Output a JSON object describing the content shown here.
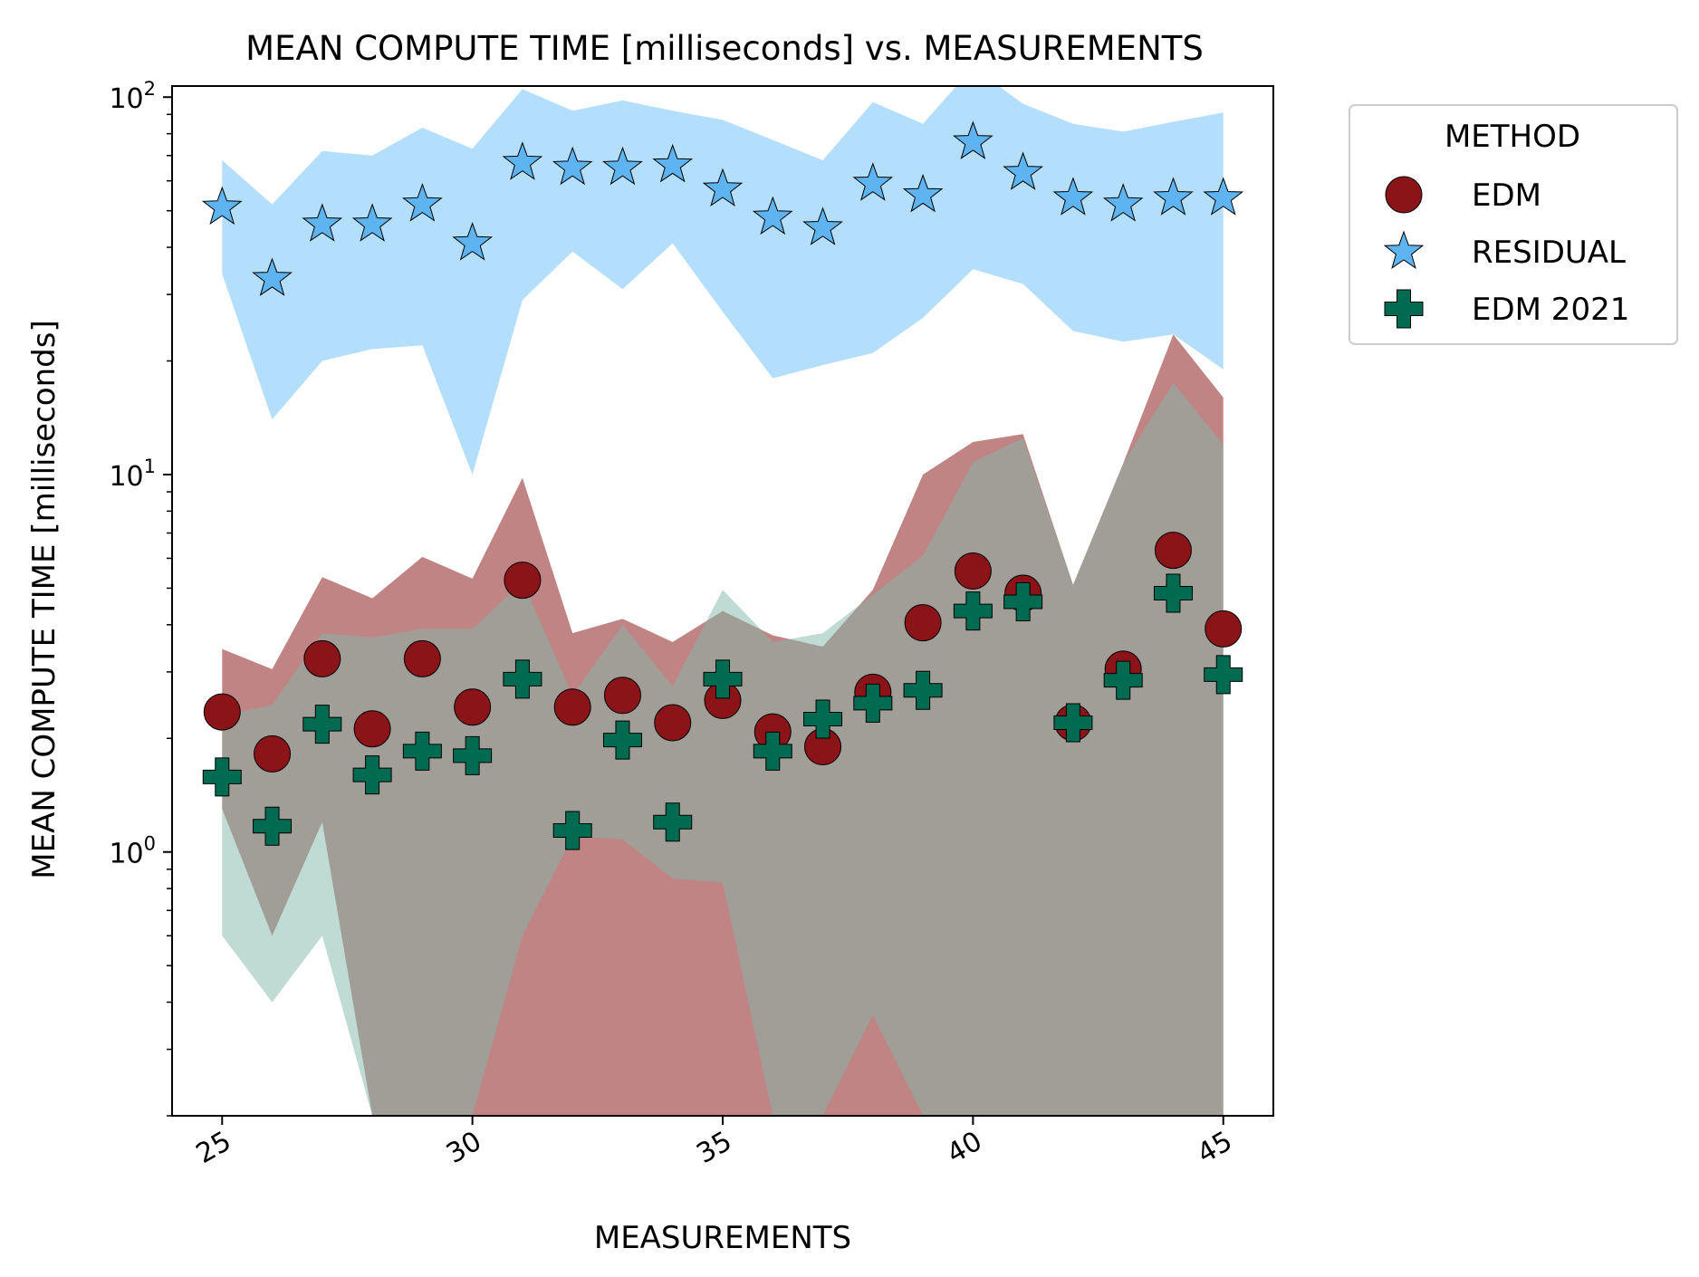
{
  "chart_data": {
    "type": "scatter",
    "title": "MEAN COMPUTE TIME [milliseconds] vs. MEASUREMENTS",
    "xlabel": "MEASUREMENTS",
    "ylabel": "MEAN COMPUTE TIME [milliseconds]",
    "y_scale": "log",
    "xlim": [
      24,
      46
    ],
    "ylim": [
      0.2,
      107
    ],
    "x_ticks": [
      25,
      30,
      35,
      40,
      45
    ],
    "x_tick_labels": [
      "25",
      "30",
      "35",
      "40",
      "45"
    ],
    "y_ticks": [
      1,
      10,
      100
    ],
    "y_tick_labels": [
      {
        "base": "10",
        "exp": "0"
      },
      {
        "base": "10",
        "exp": "1"
      },
      {
        "base": "10",
        "exp": "2"
      }
    ],
    "legend": {
      "title": "METHOD",
      "position": "outside-top-right"
    },
    "x": [
      25,
      26,
      27,
      28,
      29,
      30,
      31,
      32,
      33,
      34,
      35,
      36,
      37,
      38,
      39,
      40,
      41,
      42,
      43,
      44,
      45
    ],
    "series": [
      {
        "name": "EDM",
        "marker": "circle",
        "color": "#8b1418",
        "band_color": "#c08484",
        "values": [
          2.35,
          1.82,
          3.25,
          2.12,
          3.25,
          2.42,
          5.25,
          2.42,
          2.6,
          2.2,
          2.52,
          2.08,
          1.9,
          2.65,
          4.05,
          5.55,
          4.85,
          2.2,
          3.05,
          6.3,
          3.9
        ],
        "band_upper": [
          3.45,
          3.05,
          5.35,
          4.7,
          6.05,
          5.3,
          9.8,
          3.8,
          4.15,
          3.6,
          4.35,
          3.75,
          3.5,
          4.95,
          10.0,
          12.2,
          12.8,
          5.1,
          10.7,
          23.5,
          16.0
        ],
        "band_lower": [
          1.3,
          0.6,
          1.2,
          0.2,
          0.2,
          0.2,
          0.2,
          0.2,
          0.2,
          0.2,
          0.2,
          0.2,
          0.2,
          0.2,
          0.2,
          0.2,
          0.2,
          0.2,
          0.2,
          0.2,
          0.2
        ]
      },
      {
        "name": "RESIDUAL",
        "marker": "star",
        "color": "#5eb4f0",
        "band_color": "#b3defc",
        "values": [
          51,
          33,
          46,
          46,
          52,
          41,
          67,
          65,
          65,
          66,
          57,
          48,
          45,
          59,
          55,
          76,
          63,
          54,
          52,
          54,
          54
        ],
        "band_upper": [
          68,
          52,
          72,
          70,
          83,
          73,
          105,
          92,
          98,
          92,
          87,
          77,
          68,
          97,
          85,
          120,
          96,
          85,
          81,
          86,
          91
        ],
        "band_lower": [
          34,
          14,
          20,
          21.5,
          22,
          10,
          29,
          39,
          31,
          41,
          27,
          18,
          19.5,
          21,
          26,
          35,
          32,
          24,
          22.5,
          23.5,
          19
        ]
      },
      {
        "name": "EDM 2021",
        "marker": "plus",
        "color": "#006b50",
        "band_color": "#80b8aa",
        "values": [
          1.58,
          1.17,
          2.18,
          1.6,
          1.85,
          1.8,
          2.87,
          1.14,
          1.98,
          1.2,
          2.87,
          1.85,
          2.25,
          2.48,
          2.68,
          4.35,
          4.6,
          2.2,
          2.85,
          4.85,
          2.95
        ],
        "band_upper": [
          2.3,
          2.45,
          3.8,
          3.7,
          3.9,
          3.9,
          5.2,
          2.6,
          4.0,
          2.75,
          4.95,
          3.6,
          3.8,
          4.8,
          6.1,
          10.8,
          12.5,
          5.1,
          10.7,
          17.5,
          12.0
        ],
        "band_lower": [
          0.6,
          0.4,
          0.6,
          0.2,
          0.2,
          0.2,
          0.6,
          1.1,
          1.08,
          0.85,
          0.83,
          0.2,
          0.2,
          0.37,
          0.2,
          0.2,
          0.2,
          0.2,
          0.2,
          0.2,
          0.2
        ]
      }
    ]
  }
}
